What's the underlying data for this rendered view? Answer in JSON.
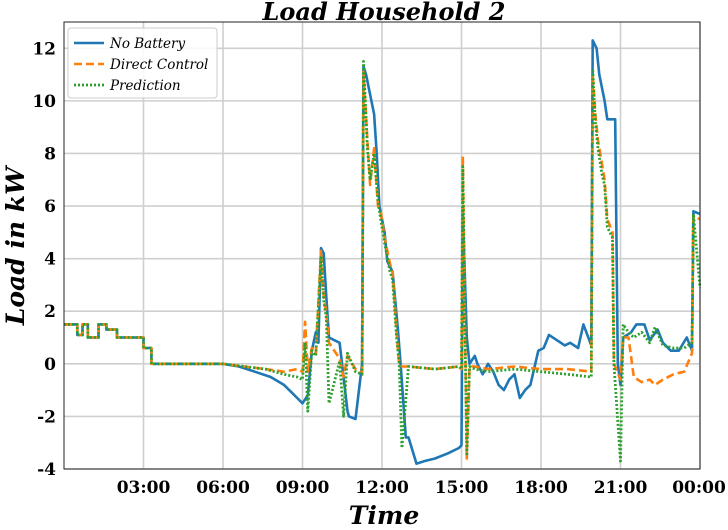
{
  "chart_data": {
    "type": "line",
    "title": "Load Household 2",
    "xlabel": "Time",
    "ylabel": "Load in kW",
    "x_tick_labels": [
      "03:00",
      "06:00",
      "09:00",
      "12:00",
      "15:00",
      "18:00",
      "21:00",
      "00:00"
    ],
    "x_tick_hours": [
      3,
      6,
      9,
      12,
      15,
      18,
      21,
      24
    ],
    "xlim": [
      0,
      24
    ],
    "ylim": [
      -4,
      13
    ],
    "y_ticks": [
      -4,
      -2,
      0,
      2,
      4,
      6,
      8,
      10,
      12
    ],
    "y_tick_labels": [
      "-4",
      "-2",
      "0",
      "2",
      "4",
      "6",
      "8",
      "10",
      "12"
    ],
    "grid": true,
    "legend_position": "top-left",
    "series": [
      {
        "name": "No Battery",
        "color": "#1f77b4",
        "style": "solid",
        "x": [
          0,
          0.5,
          0.5,
          0.7,
          0.7,
          0.9,
          0.9,
          1.3,
          1.3,
          1.6,
          1.6,
          2.0,
          2.0,
          3.0,
          3.0,
          3.3,
          3.3,
          6.0,
          6.6,
          7.2,
          7.8,
          8.3,
          8.6,
          8.8,
          9.0,
          9.2,
          9.35,
          9.5,
          9.6,
          9.7,
          9.8,
          9.9,
          10.0,
          10.4,
          10.7,
          10.75,
          11.0,
          11.25,
          11.3,
          11.4,
          11.6,
          11.7,
          11.8,
          11.9,
          12.1,
          12.2,
          12.4,
          12.6,
          12.7,
          12.9,
          12.9,
          13.0,
          13.3,
          13.6,
          14.0,
          14.5,
          14.9,
          15.0,
          15.05,
          15.2,
          15.3,
          15.5,
          15.6,
          15.8,
          16.0,
          16.2,
          16.4,
          16.6,
          16.8,
          17.0,
          17.2,
          17.4,
          17.6,
          17.9,
          18.1,
          18.3,
          18.6,
          18.9,
          19.1,
          19.4,
          19.6,
          19.9,
          19.95,
          20.1,
          20.2,
          20.4,
          20.5,
          20.8,
          20.9,
          21.0,
          21.1,
          21.4,
          21.6,
          21.9,
          22.1,
          22.4,
          22.6,
          22.9,
          23.2,
          23.5,
          23.7,
          23.75,
          24.0
        ],
        "y": [
          1.5,
          1.5,
          1.1,
          1.1,
          1.5,
          1.5,
          1.0,
          1.0,
          1.5,
          1.5,
          1.3,
          1.3,
          1.0,
          1.0,
          0.6,
          0.6,
          0.0,
          0.0,
          -0.1,
          -0.3,
          -0.5,
          -0.8,
          -1.1,
          -1.3,
          -1.5,
          -1.2,
          0.5,
          1.2,
          0.8,
          4.4,
          4.2,
          2.5,
          1.0,
          0.8,
          -1.8,
          -2.0,
          -2.1,
          0.0,
          11.3,
          11.0,
          10.0,
          9.5,
          8.0,
          6.0,
          5.0,
          3.9,
          3.5,
          1.3,
          0.0,
          -2.8,
          -2.8,
          -2.8,
          -3.8,
          -3.7,
          -3.6,
          -3.4,
          -3.2,
          -3.1,
          5.8,
          1.0,
          0.0,
          0.3,
          0.0,
          -0.4,
          0.0,
          -0.3,
          -0.8,
          -1.0,
          -0.6,
          -0.4,
          -1.3,
          -1.0,
          -0.8,
          0.5,
          0.6,
          1.1,
          0.9,
          0.7,
          0.8,
          0.6,
          1.5,
          0.7,
          12.3,
          12.0,
          11.0,
          10.0,
          9.3,
          9.3,
          0.0,
          -0.8,
          1.0,
          1.2,
          1.5,
          1.5,
          0.9,
          1.3,
          0.8,
          0.5,
          0.5,
          1.0,
          0.5,
          5.8,
          5.7
        ]
      },
      {
        "name": "Direct Control",
        "color": "#ff7f0e",
        "style": "dashed",
        "x": [
          0,
          0.5,
          0.5,
          0.7,
          0.7,
          0.9,
          0.9,
          1.3,
          1.3,
          1.6,
          1.6,
          2.0,
          2.0,
          3.0,
          3.0,
          3.3,
          3.3,
          6.0,
          6.8,
          7.6,
          8.3,
          8.8,
          9.0,
          9.1,
          9.2,
          9.35,
          9.5,
          9.7,
          9.8,
          9.9,
          10.0,
          10.4,
          10.55,
          10.7,
          11.0,
          11.25,
          11.3,
          11.45,
          11.55,
          11.7,
          11.85,
          11.95,
          12.1,
          12.3,
          12.4,
          12.55,
          12.65,
          12.75,
          13.0,
          14.0,
          14.9,
          15.0,
          15.05,
          15.2,
          15.3,
          15.5,
          16.0,
          17.0,
          18.0,
          19.0,
          19.9,
          19.95,
          20.05,
          20.15,
          20.3,
          20.4,
          20.5,
          20.7,
          20.75,
          21.0,
          21.1,
          21.3,
          21.5,
          21.8,
          22.1,
          22.3,
          22.6,
          23.0,
          23.4,
          23.7,
          23.75,
          24.0
        ],
        "y": [
          1.5,
          1.5,
          1.1,
          1.1,
          1.5,
          1.5,
          1.0,
          1.0,
          1.5,
          1.5,
          1.3,
          1.3,
          1.0,
          1.0,
          0.6,
          0.6,
          0.0,
          0.0,
          -0.1,
          -0.2,
          -0.3,
          -0.2,
          -0.3,
          1.6,
          -0.3,
          0.6,
          0.4,
          4.3,
          2.6,
          1.9,
          0.8,
          0.2,
          -0.5,
          0.3,
          -0.2,
          -0.3,
          11.1,
          8.5,
          6.8,
          8.2,
          6.0,
          5.8,
          4.8,
          3.8,
          3.5,
          1.2,
          0.0,
          -0.1,
          -0.1,
          -0.2,
          -0.1,
          -0.2,
          7.9,
          -3.6,
          -0.1,
          -0.1,
          -0.2,
          -0.1,
          -0.2,
          -0.2,
          -0.3,
          11.0,
          9.5,
          8.5,
          7.6,
          7.0,
          5.5,
          5.0,
          0.0,
          -0.6,
          1.0,
          1.0,
          -0.5,
          -0.7,
          -0.6,
          -0.8,
          -0.6,
          -0.4,
          -0.3,
          0.4,
          5.6,
          5.5
        ]
      },
      {
        "name": "Prediction",
        "color": "#2ca02c",
        "style": "dotted",
        "x": [
          0,
          0.5,
          0.5,
          0.7,
          0.7,
          0.9,
          0.9,
          1.3,
          1.3,
          1.6,
          1.6,
          2.0,
          2.0,
          3.0,
          3.0,
          3.3,
          3.3,
          6.0,
          6.8,
          7.6,
          8.3,
          8.8,
          9.0,
          9.1,
          9.2,
          9.35,
          9.5,
          9.7,
          9.8,
          9.9,
          10.0,
          10.4,
          10.55,
          10.7,
          11.0,
          11.25,
          11.3,
          11.45,
          11.55,
          11.7,
          11.85,
          11.95,
          12.1,
          12.3,
          12.4,
          12.55,
          12.65,
          12.75,
          13.0,
          14.0,
          14.9,
          15.0,
          15.05,
          15.2,
          15.3,
          15.5,
          16.0,
          17.0,
          18.0,
          19.0,
          19.9,
          19.95,
          20.05,
          20.15,
          20.3,
          20.4,
          20.5,
          20.7,
          20.75,
          21.0,
          21.1,
          21.3,
          21.5,
          21.8,
          22.1,
          22.3,
          22.6,
          23.0,
          23.4,
          23.7,
          23.75,
          24.0
        ],
        "y": [
          1.5,
          1.5,
          1.1,
          1.1,
          1.5,
          1.5,
          1.0,
          1.0,
          1.5,
          1.5,
          1.3,
          1.3,
          1.0,
          1.0,
          0.6,
          0.6,
          0.0,
          0.0,
          -0.1,
          -0.2,
          -0.4,
          -0.5,
          -0.6,
          0.8,
          -1.8,
          0.5,
          0.3,
          4.1,
          2.4,
          1.7,
          -1.5,
          0.1,
          -2.0,
          0.4,
          -0.3,
          -0.4,
          11.5,
          8.2,
          7.0,
          8.0,
          6.2,
          5.5,
          4.6,
          3.5,
          3.2,
          1.0,
          0.0,
          -3.2,
          -0.1,
          -0.2,
          -0.1,
          -0.2,
          7.5,
          -3.5,
          -0.1,
          -0.2,
          -0.3,
          -0.2,
          -0.3,
          -0.4,
          -0.5,
          11.2,
          9.2,
          8.2,
          7.2,
          6.8,
          5.2,
          4.8,
          0.0,
          -3.7,
          1.5,
          1.2,
          1.0,
          1.2,
          0.8,
          1.4,
          0.7,
          0.6,
          0.6,
          0.8,
          5.7,
          2.9
        ]
      }
    ]
  }
}
